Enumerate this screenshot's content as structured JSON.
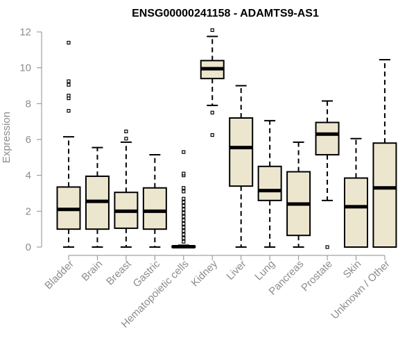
{
  "chart_data": {
    "type": "boxplot",
    "title": "ENSG00000241158 - ADAMTS9-AS1",
    "xlabel": "",
    "ylabel": "Expression",
    "ylim": [
      0,
      12
    ],
    "yticks": [
      0,
      2,
      4,
      6,
      8,
      10,
      12
    ],
    "categories": [
      "Bladder",
      "Brain",
      "Breast",
      "Gastric",
      "Hematopoietic cells",
      "Kidney",
      "Liver",
      "Lung",
      "Pancreas",
      "Prostate",
      "Skin",
      "Unknown / Other"
    ],
    "boxes": [
      {
        "name": "Bladder",
        "whisker_low": 0,
        "q1": 1.0,
        "median": 2.1,
        "q3": 3.35,
        "whisker_high": 6.15,
        "outliers": [
          7.6,
          8.3,
          8.45,
          9.05,
          9.25,
          11.4
        ]
      },
      {
        "name": "Brain",
        "whisker_low": 0,
        "q1": 1.0,
        "median": 2.55,
        "q3": 3.95,
        "whisker_high": 5.55,
        "outliers": []
      },
      {
        "name": "Breast",
        "whisker_low": 0,
        "q1": 1.05,
        "median": 2.0,
        "q3": 3.05,
        "whisker_high": 5.85,
        "outliers": [
          6.05,
          6.45
        ]
      },
      {
        "name": "Gastric",
        "whisker_low": 0,
        "q1": 1.0,
        "median": 2.0,
        "q3": 3.3,
        "whisker_high": 5.15,
        "outliers": []
      },
      {
        "name": "Hematopoietic cells",
        "whisker_low": 0,
        "q1": 0,
        "median": 0.02,
        "q3": 0.05,
        "whisker_high": 0.1,
        "outliers": [
          0.3,
          0.5,
          0.7,
          0.9,
          1.1,
          1.3,
          1.5,
          1.7,
          1.9,
          2.1,
          2.3,
          2.5,
          2.7,
          3.1,
          3.3,
          4.0,
          4.1,
          5.3
        ]
      },
      {
        "name": "Kidney",
        "whisker_low": 7.9,
        "q1": 9.4,
        "median": 9.95,
        "q3": 10.4,
        "whisker_high": 11.75,
        "outliers": [
          6.25,
          7.5,
          12.1
        ]
      },
      {
        "name": "Liver",
        "whisker_low": 0,
        "q1": 3.4,
        "median": 5.55,
        "q3": 7.2,
        "whisker_high": 9.0,
        "outliers": []
      },
      {
        "name": "Lung",
        "whisker_low": 0,
        "q1": 2.6,
        "median": 3.15,
        "q3": 4.5,
        "whisker_high": 7.05,
        "outliers": []
      },
      {
        "name": "Pancreas",
        "whisker_low": 0,
        "q1": 0.65,
        "median": 2.4,
        "q3": 4.2,
        "whisker_high": 5.85,
        "outliers": []
      },
      {
        "name": "Prostate",
        "whisker_low": 2.6,
        "q1": 5.15,
        "median": 6.3,
        "q3": 6.95,
        "whisker_high": 8.15,
        "outliers": [
          0
        ]
      },
      {
        "name": "Skin",
        "whisker_low": 0,
        "q1": 0,
        "median": 2.25,
        "q3": 3.85,
        "whisker_high": 6.05,
        "outliers": []
      },
      {
        "name": "Unknown / Other",
        "whisker_low": 0,
        "q1": 0,
        "median": 3.3,
        "q3": 5.8,
        "whisker_high": 10.45,
        "outliers": []
      }
    ],
    "box_fill": "#ede6cf",
    "box_stroke": "#000000",
    "axis_color": "#8c8c8c",
    "grid": false,
    "legend": "none"
  }
}
